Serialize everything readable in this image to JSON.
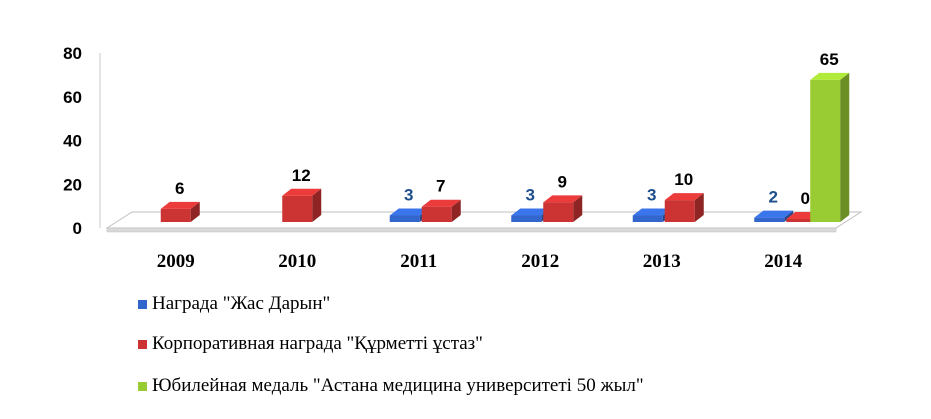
{
  "chart_data": {
    "type": "bar",
    "categories": [
      "2009",
      "2010",
      "2011",
      "2012",
      "2013",
      "2014"
    ],
    "series": [
      {
        "name": "Награда \"Жас Дарын\"",
        "values": [
          null,
          null,
          3,
          3,
          3,
          2
        ],
        "color": "#3366cc",
        "labels": [
          "",
          "",
          "3",
          "3",
          "3",
          "2"
        ],
        "label_color": "#1f4e8c"
      },
      {
        "name": "Корпоративная награда \"Құрметті  ұстаз\"",
        "values": [
          6,
          12,
          7,
          9,
          10,
          0
        ],
        "color": "#cc3333",
        "labels": [
          "6",
          "12",
          "7",
          "9",
          "10",
          "0"
        ],
        "label_color": "#000000"
      },
      {
        "name": "Юбилейная медаль \"Астана медицина университеті 50 жыл\"",
        "values": [
          null,
          null,
          null,
          null,
          null,
          65
        ],
        "color": "#99cc33",
        "labels": [
          "",
          "",
          "",
          "",
          "",
          "65"
        ],
        "label_color": "#000000"
      }
    ],
    "ylim": [
      0,
      80
    ],
    "yticks": [
      "0",
      "20",
      "40",
      "60",
      "80"
    ],
    "title": "",
    "xlabel": "",
    "ylabel": "",
    "grid": false,
    "style": "3d",
    "legend_position": "bottom"
  }
}
